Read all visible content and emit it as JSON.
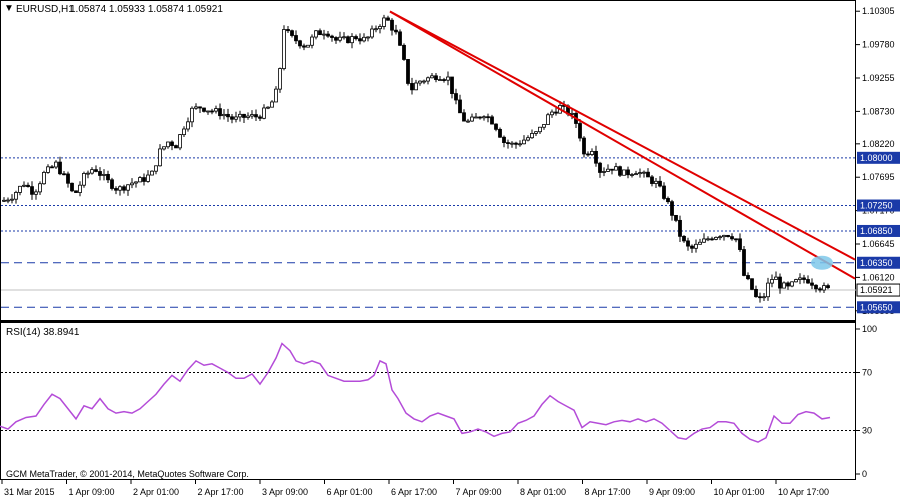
{
  "chart_data": [
    {
      "type": "candlestick",
      "symbol_label": "EURUSD,H1",
      "ohlc_label": "1.05874 1.05933 1.05874 1.05921",
      "y_ticks": [
        "1.10305",
        "1.09780",
        "1.09255",
        "1.08730",
        "1.08220",
        "1.07695",
        "1.07170",
        "1.06645",
        "1.06120",
        "1.05595"
      ],
      "y_range": [
        1.0545,
        1.1045
      ],
      "levels": [
        {
          "label": "1.08000",
          "value": 1.08,
          "style": "dotted"
        },
        {
          "label": "1.07250",
          "value": 1.0725,
          "style": "dotted"
        },
        {
          "label": "1.06850",
          "value": 1.0685,
          "style": "dotted"
        },
        {
          "label": "1.06350",
          "value": 1.0635,
          "style": "dashed"
        },
        {
          "label": "1.05650",
          "value": 1.0565,
          "style": "dashed"
        }
      ],
      "current_price": {
        "label": "1.05921",
        "value": 1.05921
      },
      "x_labels": [
        "31 Mar 2015",
        "1 Apr 09:00",
        "2 Apr 01:00",
        "2 Apr 17:00",
        "3 Apr 09:00",
        "6 Apr 01:00",
        "6 Apr 17:00",
        "7 Apr 09:00",
        "8 Apr 01:00",
        "8 Apr 17:00",
        "9 Apr 09:00",
        "10 Apr 01:00",
        "10 Apr 17:00"
      ],
      "price_path": [
        [
          0,
          1.073
        ],
        [
          12,
          1.074
        ],
        [
          24,
          1.076
        ],
        [
          34,
          1.0745
        ],
        [
          44,
          1.0775
        ],
        [
          56,
          1.079
        ],
        [
          66,
          1.0765
        ],
        [
          74,
          1.074
        ],
        [
          84,
          1.077
        ],
        [
          94,
          1.0785
        ],
        [
          106,
          1.0765
        ],
        [
          118,
          1.075
        ],
        [
          130,
          1.076
        ],
        [
          142,
          1.0765
        ],
        [
          152,
          1.0775
        ],
        [
          160,
          1.081
        ],
        [
          168,
          1.0825
        ],
        [
          176,
          1.082
        ],
        [
          184,
          1.085
        ],
        [
          192,
          1.0875
        ],
        [
          200,
          1.088
        ],
        [
          210,
          1.0875
        ],
        [
          222,
          1.087
        ],
        [
          234,
          1.086
        ],
        [
          246,
          1.0865
        ],
        [
          258,
          1.0865
        ],
        [
          270,
          1.088
        ],
        [
          278,
          1.091
        ],
        [
          284,
          1.1005
        ],
        [
          290,
          1.099
        ],
        [
          296,
          1.0985
        ],
        [
          306,
          1.0975
        ],
        [
          316,
          1.0995
        ],
        [
          326,
          1.1
        ],
        [
          336,
          1.0985
        ],
        [
          346,
          1.0985
        ],
        [
          356,
          1.099
        ],
        [
          366,
          1.0985
        ],
        [
          376,
          1.1005
        ],
        [
          386,
          1.102
        ],
        [
          396,
          1.0995
        ],
        [
          404,
          1.095
        ],
        [
          410,
          1.0905
        ],
        [
          418,
          1.092
        ],
        [
          428,
          1.0925
        ],
        [
          438,
          1.093
        ],
        [
          448,
          1.0925
        ],
        [
          458,
          1.0875
        ],
        [
          466,
          1.0855
        ],
        [
          474,
          1.086
        ],
        [
          484,
          1.087
        ],
        [
          494,
          1.0855
        ],
        [
          504,
          1.0825
        ],
        [
          514,
          1.082
        ],
        [
          526,
          1.083
        ],
        [
          538,
          1.084
        ],
        [
          550,
          1.087
        ],
        [
          560,
          1.088
        ],
        [
          570,
          1.087
        ],
        [
          578,
          1.085
        ],
        [
          584,
          1.0805
        ],
        [
          592,
          1.0815
        ],
        [
          600,
          1.078
        ],
        [
          612,
          1.0785
        ],
        [
          624,
          1.0775
        ],
        [
          636,
          1.078
        ],
        [
          646,
          1.077
        ],
        [
          656,
          1.076
        ],
        [
          666,
          1.0735
        ],
        [
          674,
          1.0705
        ],
        [
          682,
          1.067
        ],
        [
          690,
          1.0655
        ],
        [
          700,
          1.0665
        ],
        [
          710,
          1.0675
        ],
        [
          720,
          1.068
        ],
        [
          730,
          1.068
        ],
        [
          738,
          1.067
        ],
        [
          744,
          1.0615
        ],
        [
          750,
          1.06
        ],
        [
          756,
          1.058
        ],
        [
          762,
          1.0575
        ],
        [
          768,
          1.06
        ],
        [
          774,
          1.0615
        ],
        [
          780,
          1.06
        ],
        [
          788,
          1.0595
        ],
        [
          796,
          1.0605
        ],
        [
          806,
          1.061
        ],
        [
          816,
          1.06
        ],
        [
          822,
          1.0595
        ],
        [
          830,
          1.0592
        ]
      ],
      "trendlines": [
        {
          "from": [
            390,
            1.103
          ],
          "to": [
            855,
            1.064
          ],
          "color": "#e00000"
        },
        {
          "from": [
            390,
            1.103
          ],
          "to": [
            855,
            1.061
          ],
          "color": "#e00000"
        }
      ],
      "highlight": {
        "at": [
          822,
          1.0635
        ],
        "color": "#7ec8ea"
      }
    },
    {
      "type": "line",
      "label": "RSI(14) 38.8941",
      "y_ticks": [
        "100",
        "70",
        "30",
        "0"
      ],
      "levels": [
        70,
        30
      ],
      "ylim": [
        0,
        100
      ],
      "color": "#b44cd8",
      "series": [
        [
          0,
          33
        ],
        [
          8,
          31
        ],
        [
          16,
          36
        ],
        [
          26,
          39
        ],
        [
          36,
          40
        ],
        [
          44,
          48
        ],
        [
          52,
          55
        ],
        [
          60,
          52
        ],
        [
          68,
          45
        ],
        [
          76,
          38
        ],
        [
          84,
          47
        ],
        [
          92,
          45
        ],
        [
          100,
          52
        ],
        [
          108,
          45
        ],
        [
          116,
          42
        ],
        [
          124,
          43
        ],
        [
          132,
          42
        ],
        [
          140,
          45
        ],
        [
          148,
          50
        ],
        [
          156,
          55
        ],
        [
          164,
          62
        ],
        [
          172,
          68
        ],
        [
          180,
          64
        ],
        [
          188,
          72
        ],
        [
          196,
          78
        ],
        [
          204,
          75
        ],
        [
          212,
          76
        ],
        [
          220,
          73
        ],
        [
          228,
          70
        ],
        [
          236,
          66
        ],
        [
          244,
          66
        ],
        [
          252,
          69
        ],
        [
          260,
          62
        ],
        [
          268,
          70
        ],
        [
          276,
          80
        ],
        [
          282,
          90
        ],
        [
          290,
          85
        ],
        [
          296,
          78
        ],
        [
          304,
          76
        ],
        [
          312,
          78
        ],
        [
          320,
          76
        ],
        [
          328,
          68
        ],
        [
          336,
          66
        ],
        [
          344,
          64
        ],
        [
          352,
          64
        ],
        [
          360,
          64
        ],
        [
          368,
          65
        ],
        [
          374,
          68
        ],
        [
          380,
          78
        ],
        [
          386,
          76
        ],
        [
          392,
          58
        ],
        [
          398,
          52
        ],
        [
          406,
          42
        ],
        [
          414,
          38
        ],
        [
          422,
          36
        ],
        [
          430,
          40
        ],
        [
          438,
          42
        ],
        [
          446,
          40
        ],
        [
          454,
          38
        ],
        [
          462,
          28
        ],
        [
          470,
          29
        ],
        [
          478,
          31
        ],
        [
          486,
          29
        ],
        [
          494,
          26
        ],
        [
          502,
          28
        ],
        [
          510,
          29
        ],
        [
          518,
          35
        ],
        [
          526,
          37
        ],
        [
          534,
          40
        ],
        [
          542,
          48
        ],
        [
          550,
          54
        ],
        [
          558,
          50
        ],
        [
          566,
          47
        ],
        [
          574,
          44
        ],
        [
          582,
          32
        ],
        [
          590,
          36
        ],
        [
          598,
          35
        ],
        [
          606,
          34
        ],
        [
          614,
          36
        ],
        [
          622,
          37
        ],
        [
          630,
          36
        ],
        [
          638,
          38
        ],
        [
          646,
          36
        ],
        [
          654,
          38
        ],
        [
          662,
          35
        ],
        [
          670,
          30
        ],
        [
          678,
          25
        ],
        [
          686,
          24
        ],
        [
          694,
          28
        ],
        [
          702,
          31
        ],
        [
          710,
          32
        ],
        [
          718,
          36
        ],
        [
          726,
          36
        ],
        [
          734,
          35
        ],
        [
          742,
          28
        ],
        [
          750,
          24
        ],
        [
          758,
          22
        ],
        [
          766,
          25
        ],
        [
          774,
          40
        ],
        [
          782,
          35
        ],
        [
          790,
          35
        ],
        [
          798,
          41
        ],
        [
          806,
          43
        ],
        [
          814,
          42
        ],
        [
          822,
          38
        ],
        [
          830,
          39
        ]
      ]
    }
  ],
  "footer": {
    "copyright": "GCM MetaTrader, © 2001-2014, MetaQuotes Software Corp."
  },
  "colors": {
    "background": "#ffffff",
    "candle": "#000000",
    "trendline": "#e00000",
    "rsi": "#b44cd8",
    "level_line": "#1a3aa8",
    "highlight": "#7ec8ea"
  }
}
